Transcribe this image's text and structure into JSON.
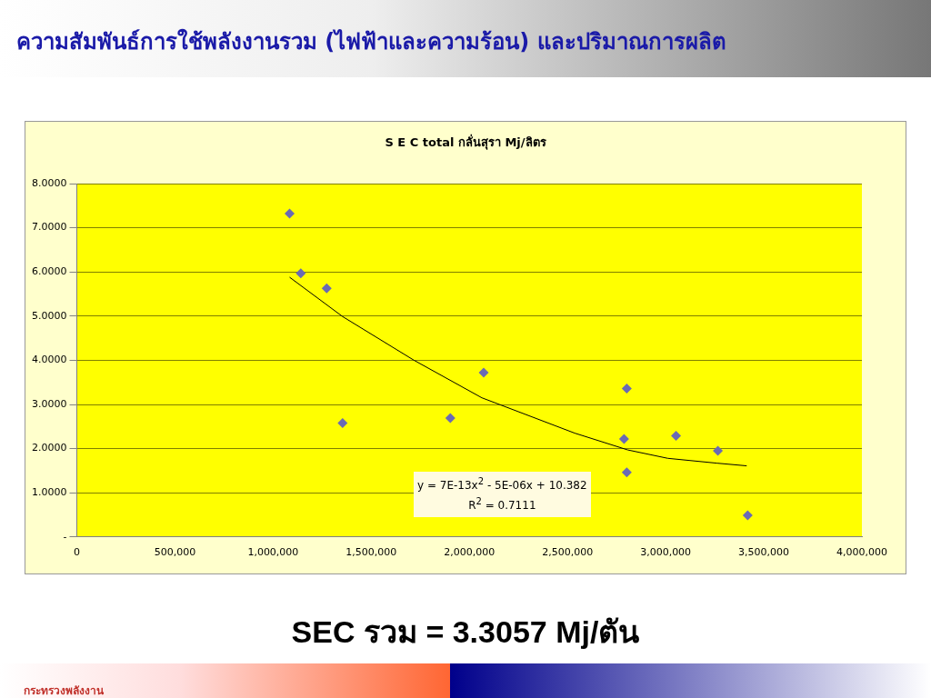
{
  "chart_data": {
    "type": "scatter",
    "title": "ความสัมพันธ์การใช้พลังงานรวม (ไฟฟ้าและความร้อน) และปริมาณการผลิต",
    "subtitle": "S E C  total กลั่นสุรา Mj/ลิตร",
    "xlim": [
      0,
      4000000
    ],
    "xticks": [
      {
        "value": 0,
        "label": "0"
      },
      {
        "value": 500000,
        "label": "500,000"
      },
      {
        "value": 1000000,
        "label": "1,000,000"
      },
      {
        "value": 1500000,
        "label": "1,500,000"
      },
      {
        "value": 2000000,
        "label": "2,000,000"
      },
      {
        "value": 2500000,
        "label": "2,500,000"
      },
      {
        "value": 3000000,
        "label": "3,000,000"
      },
      {
        "value": 3500000,
        "label": "3,500,000"
      },
      {
        "value": 4000000,
        "label": "4,000,000"
      }
    ],
    "ylim": [
      0,
      8
    ],
    "yticks": [
      {
        "value": 0,
        "label": "-"
      },
      {
        "value": 1,
        "label": "1.0000"
      },
      {
        "value": 2,
        "label": "2.0000"
      },
      {
        "value": 3,
        "label": "3.0000"
      },
      {
        "value": 4,
        "label": "4.0000"
      },
      {
        "value": 5,
        "label": "5.0000"
      },
      {
        "value": 6,
        "label": "6.0000"
      },
      {
        "value": 7,
        "label": "7.0000"
      },
      {
        "value": 8,
        "label": "8.0000"
      }
    ],
    "grid": "y",
    "series": [
      {
        "color": "#6a6ab4",
        "marker": "diamond",
        "x": [
          1084000,
          1141000,
          1273000,
          1354000,
          1903000,
          2073000,
          2802000,
          2788000,
          2802000,
          3053000,
          3266000,
          3418000
        ],
        "values": [
          7.32,
          5.97,
          5.63,
          2.58,
          2.69,
          3.72,
          3.36,
          2.22,
          1.46,
          2.29,
          1.95,
          0.49
        ]
      },
      {
        "type": "line",
        "color": "#000000",
        "marker": "none",
        "x": [
          1084000,
          1354000,
          1718000,
          2064000,
          2537000,
          2807000,
          3011000,
          3262000,
          3413000
        ],
        "values": [
          5.88,
          4.99,
          4.0,
          3.15,
          2.35,
          1.97,
          1.78,
          1.67,
          1.61
        ]
      }
    ],
    "annotations": [
      "y = 7E-13x$^{2}$ - 5E-06x + 10.382\nR$^{2}$ = 0.7111",
      "SEC รวม = 3.3057 Mj/ตัน",
      "กระทรวงพลังงาน"
    ]
  }
}
